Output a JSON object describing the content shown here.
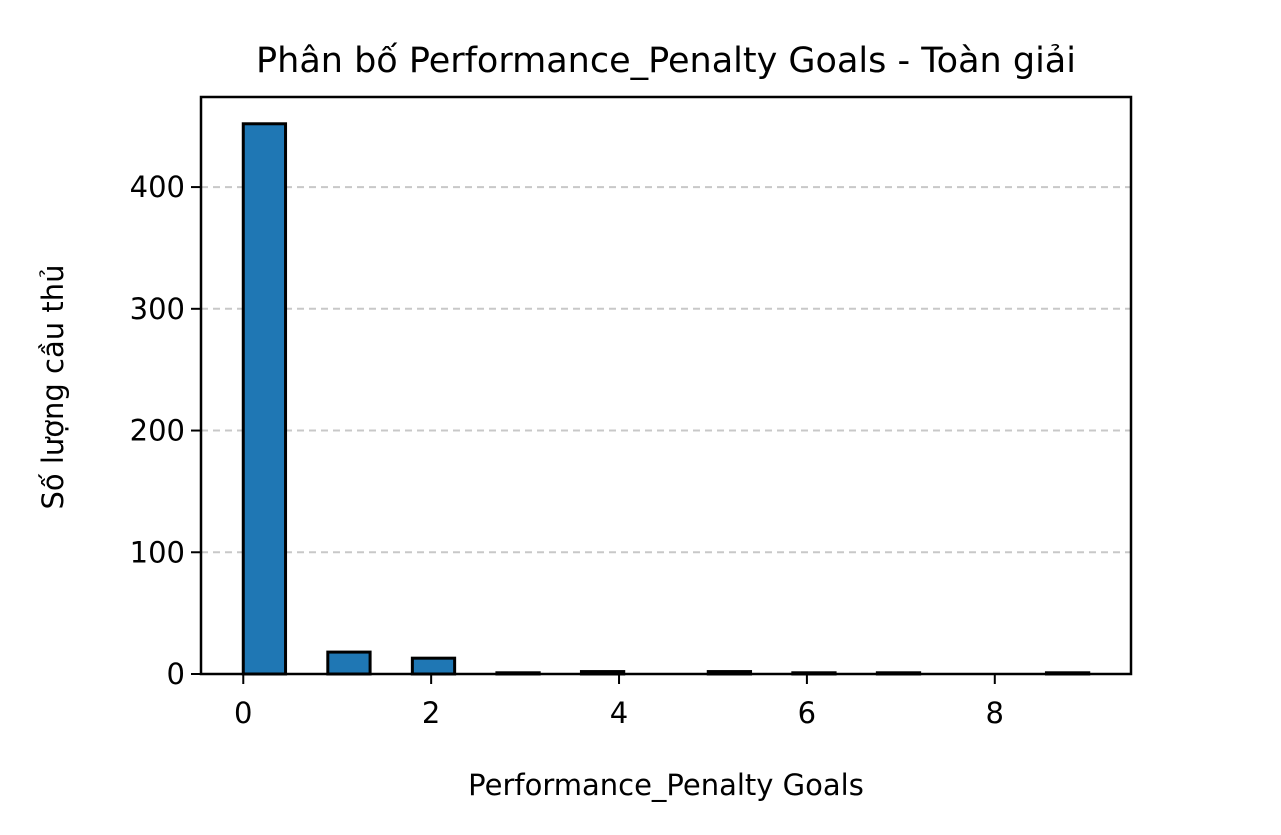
{
  "chart_data": {
    "type": "bar",
    "title": "Phân bố Performance_Penalty Goals - Toàn giải",
    "xlabel": "Performance_Penalty Goals",
    "ylabel": "Số lượng cầu thủ",
    "xlim": [
      -0.45,
      9.45
    ],
    "ylim": [
      0,
      474
    ],
    "xticks": [
      0,
      2,
      4,
      6,
      8
    ],
    "yticks": [
      0,
      100,
      200,
      300,
      400
    ],
    "bins": [
      {
        "start": 0.0,
        "end": 0.45,
        "count": 452
      },
      {
        "start": 0.9,
        "end": 1.35,
        "count": 18
      },
      {
        "start": 1.8,
        "end": 2.25,
        "count": 13
      },
      {
        "start": 2.7,
        "end": 3.15,
        "count": 1
      },
      {
        "start": 3.6,
        "end": 4.05,
        "count": 2
      },
      {
        "start": 4.95,
        "end": 5.4,
        "count": 2
      },
      {
        "start": 5.85,
        "end": 6.3,
        "count": 1
      },
      {
        "start": 6.75,
        "end": 7.2,
        "count": 1
      },
      {
        "start": 8.55,
        "end": 9.0,
        "count": 1
      }
    ],
    "grid": {
      "y": true,
      "x": false,
      "style": "dashed"
    },
    "bar_color": "#1f77b4",
    "edge_color": "#000000"
  }
}
